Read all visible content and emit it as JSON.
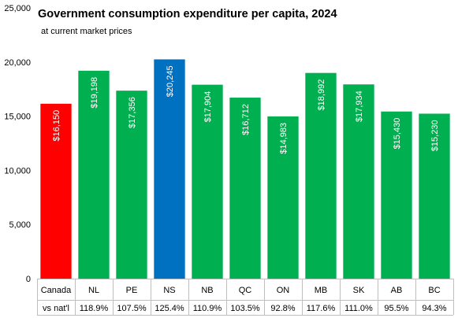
{
  "chart_data": {
    "type": "bar",
    "title": "Government consumption expenditure per capita, 2024",
    "subtitle": "at current market prices",
    "categories": [
      "Canada",
      "NL",
      "PE",
      "NS",
      "NB",
      "QC",
      "ON",
      "MB",
      "SK",
      "AB",
      "BC"
    ],
    "values": [
      16150,
      19198,
      17356,
      20245,
      17904,
      16712,
      14983,
      18992,
      17934,
      15430,
      15230
    ],
    "data_labels": [
      "$16,150",
      "$19,198",
      "$17,356",
      "$20,245",
      "$17,904",
      "$16,712",
      "$14,983",
      "$18,992",
      "$17,934",
      "$15,430",
      "$15,230"
    ],
    "bar_colors": [
      "#ff0000",
      "#00b050",
      "#00b050",
      "#0070c0",
      "#00b050",
      "#00b050",
      "#00b050",
      "#00b050",
      "#00b050",
      "#00b050",
      "#00b050"
    ],
    "ylim": [
      0,
      25000
    ],
    "yticks": [
      0,
      5000,
      10000,
      15000,
      20000,
      25000
    ],
    "ytick_labels": [
      "0",
      "5,000",
      "10,000",
      "15,000",
      "20,000",
      "25,000"
    ],
    "row2_label": "vs nat'l",
    "row2_values": [
      "",
      "118.9%",
      "107.5%",
      "125.4%",
      "110.9%",
      "103.5%",
      "92.8%",
      "117.6%",
      "111.0%",
      "95.5%",
      "94.3%"
    ],
    "grid": false,
    "legend": "none"
  }
}
